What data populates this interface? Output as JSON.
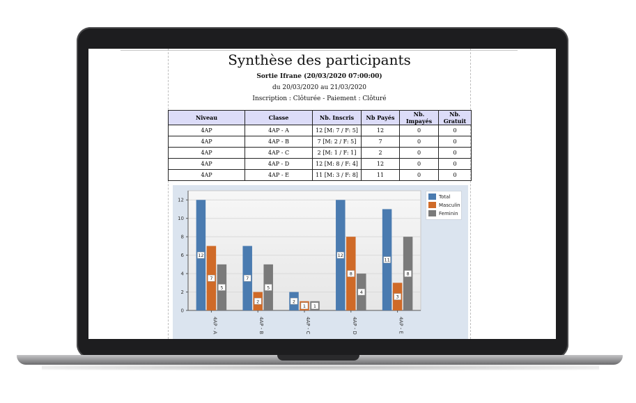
{
  "report": {
    "title": "Synthèse des participants",
    "event": "Sortie Ifrane (20/03/2020 07:00:00)",
    "dates": "du 20/03/2020 au 21/03/2020",
    "status": "Inscription : Clôturée - Paiement : Clôturé"
  },
  "table": {
    "headers": [
      "Niveau",
      "Classe",
      "Nb. Inscris",
      "Nb Payés",
      "Nb. Impayés",
      "Nb. Gratuit"
    ],
    "rows": [
      [
        "4AP",
        "4AP - A",
        "12 [M: 7 / F: 5]",
        "12",
        "0",
        "0"
      ],
      [
        "4AP",
        "4AP - B",
        "7 [M: 2 / F: 5]",
        "7",
        "0",
        "0"
      ],
      [
        "4AP",
        "4AP - C",
        "2 [M: 1 / F: 1]",
        "2",
        "0",
        "0"
      ],
      [
        "4AP",
        "4AP - D",
        "12 [M: 8 / F: 4]",
        "12",
        "0",
        "0"
      ],
      [
        "4AP",
        "4AP - E",
        "11 [M: 3 / F: 8]",
        "11",
        "0",
        "0"
      ]
    ]
  },
  "colors": {
    "total": "#4a7bb0",
    "masculin": "#cf6a28",
    "feminin": "#7a7a7a"
  },
  "chart_data": {
    "type": "bar",
    "categories": [
      "4AP - A",
      "4AP - B",
      "4AP - C",
      "4AP - D",
      "4AP - E"
    ],
    "series": [
      {
        "name": "Total",
        "values": [
          12,
          7,
          2,
          12,
          11
        ]
      },
      {
        "name": "Masculin",
        "values": [
          7,
          2,
          1,
          8,
          3
        ]
      },
      {
        "name": "Feminin",
        "values": [
          5,
          5,
          1,
          4,
          8
        ]
      }
    ],
    "ylim": [
      0,
      13
    ],
    "yticks": [
      0,
      2,
      4,
      6,
      8,
      10,
      12
    ],
    "grid": true,
    "legend": "top-right"
  }
}
